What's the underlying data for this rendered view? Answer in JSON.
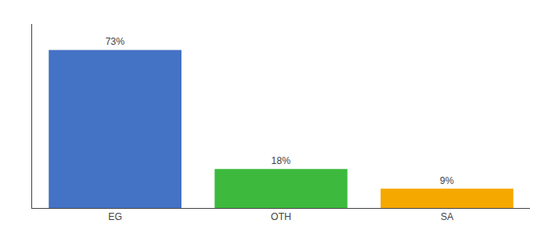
{
  "chart_data": {
    "type": "bar",
    "categories": [
      "EG",
      "OTH",
      "SA"
    ],
    "values": [
      73,
      18,
      9
    ],
    "value_labels": [
      "73%",
      "18%",
      "9%"
    ],
    "colors": [
      "#4472c4",
      "#3dba3d",
      "#f5a800"
    ],
    "ylim": [
      0,
      85
    ],
    "yticks": [],
    "grid": false,
    "data_labels": true,
    "tick_labels": "x"
  }
}
